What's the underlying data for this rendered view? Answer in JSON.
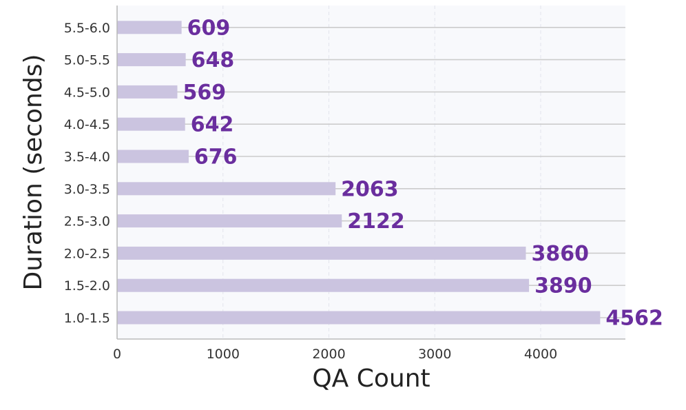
{
  "chart_data": {
    "type": "bar",
    "orientation": "horizontal",
    "categories": [
      "1.0-1.5",
      "1.5-2.0",
      "2.0-2.5",
      "2.5-3.0",
      "3.0-3.5",
      "3.5-4.0",
      "4.0-4.5",
      "4.5-5.0",
      "5.0-5.5",
      "5.5-6.0"
    ],
    "values": [
      4562,
      3890,
      3860,
      2122,
      2063,
      676,
      642,
      569,
      648,
      609
    ],
    "value_labels": [
      "4562",
      "3890",
      "3860",
      "2122",
      "2063",
      "676",
      "642",
      "569",
      "648",
      "609"
    ],
    "xlabel": "QA Count",
    "ylabel": "Duration (seconds)",
    "xlim": [
      0,
      4800
    ],
    "xticks": [
      0,
      1000,
      2000,
      3000,
      4000
    ],
    "xtick_labels": [
      "0",
      "1000",
      "2000",
      "3000",
      "4000"
    ],
    "grid": true,
    "colors": {
      "bar": "#cbc4e0",
      "label": "#6a2e9e",
      "plot_background": "#f8f9fc",
      "gridline": "#cccccc",
      "axis": "#bbbbbb"
    }
  }
}
